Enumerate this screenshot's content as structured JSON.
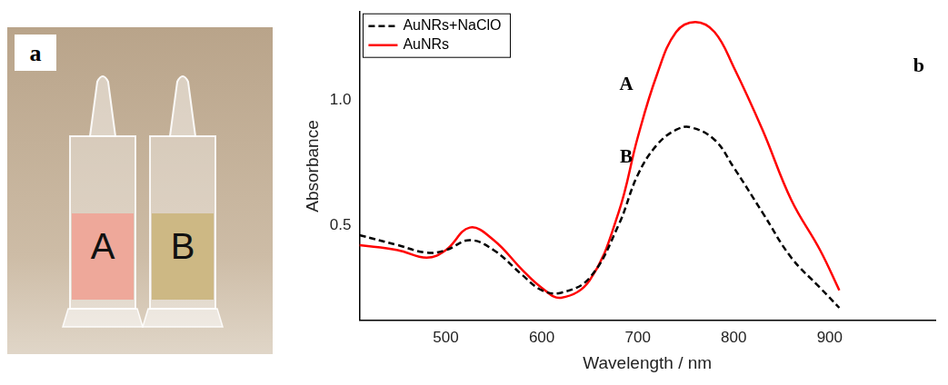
{
  "photo": {
    "label": "a",
    "tubes": [
      {
        "label": "A",
        "color": "#eea89a"
      },
      {
        "label": "B",
        "color": "#cdb884"
      }
    ]
  },
  "chart_data": {
    "type": "line",
    "panel_label": "b",
    "x_label": "Wavelength / nm",
    "y_label": "Absorbance",
    "xlim": [
      410,
      1010
    ],
    "xticks": [
      500,
      600,
      700,
      800,
      900
    ],
    "ylim": [
      0.12,
      1.35
    ],
    "yticks": [
      0.5,
      {
        "value": 1,
        "label": "1.0"
      }
    ],
    "grid": false,
    "legend": "top-left",
    "annotations": [
      {
        "text": "A",
        "x": 688,
        "y": 1.06
      },
      {
        "text": "B",
        "x": 688,
        "y": 0.77
      }
    ],
    "series": [
      {
        "name": "AuNRs+NaClO",
        "color": "#000000",
        "line_style": "dashed",
        "x": [
          410,
          450,
          480,
          500,
          525,
          550,
          580,
          600,
          620,
          650,
          680,
          700,
          720,
          740,
          755,
          780,
          800,
          830,
          860,
          890,
          910
        ],
        "values": [
          0.46,
          0.42,
          0.39,
          0.4,
          0.44,
          0.4,
          0.3,
          0.24,
          0.23,
          0.29,
          0.5,
          0.7,
          0.82,
          0.88,
          0.89,
          0.84,
          0.73,
          0.55,
          0.37,
          0.25,
          0.17
        ]
      },
      {
        "name": "AuNRs",
        "color": "#ff0000",
        "line_style": "solid",
        "x": [
          410,
          450,
          480,
          500,
          525,
          550,
          580,
          600,
          620,
          650,
          680,
          700,
          720,
          740,
          760,
          780,
          800,
          830,
          860,
          890,
          910
        ],
        "values": [
          0.42,
          0.4,
          0.37,
          0.4,
          0.49,
          0.44,
          0.32,
          0.25,
          0.21,
          0.28,
          0.55,
          0.85,
          1.1,
          1.27,
          1.31,
          1.27,
          1.13,
          0.88,
          0.6,
          0.4,
          0.24
        ]
      }
    ]
  }
}
